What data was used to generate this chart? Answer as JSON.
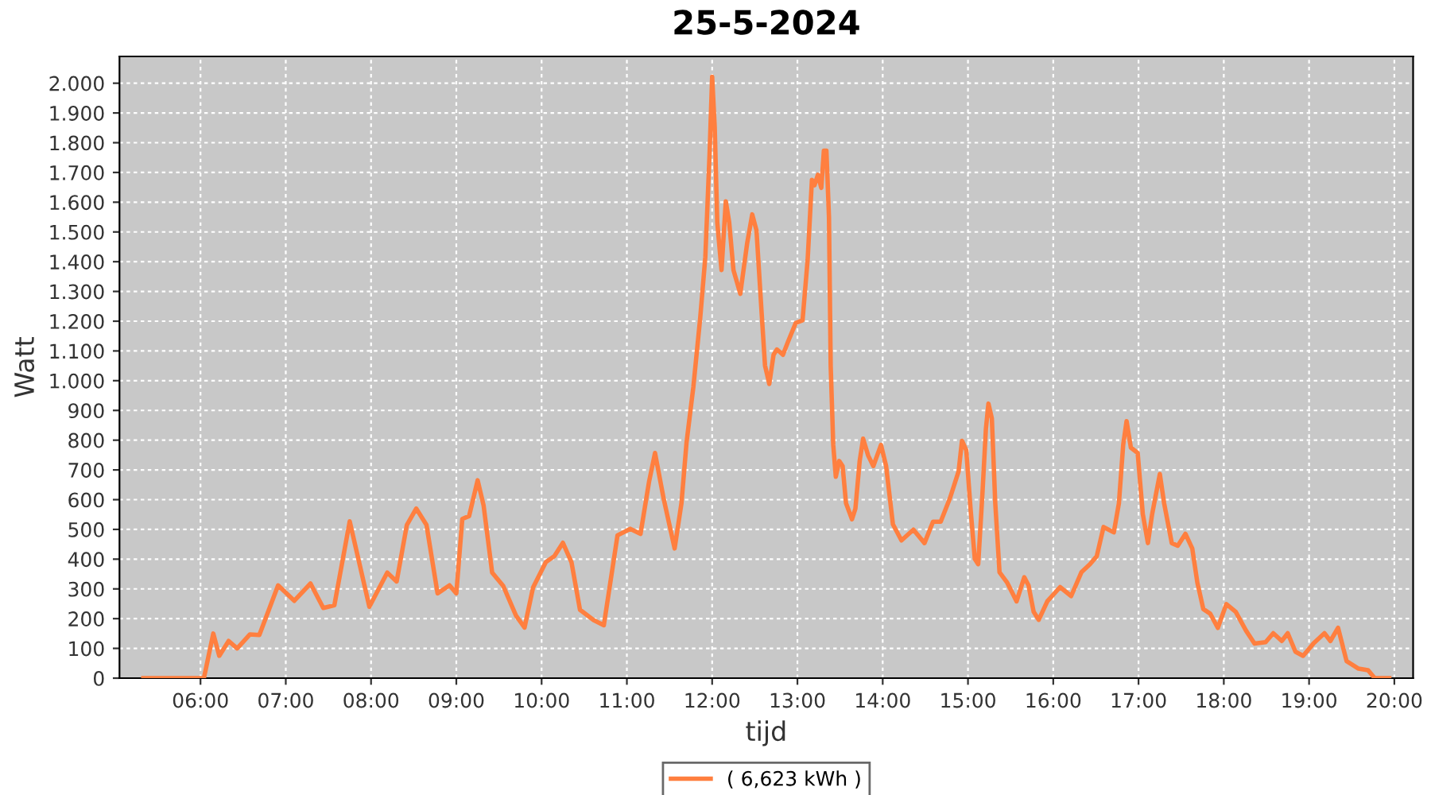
{
  "chart_data": {
    "type": "line",
    "title": "25-5-2024",
    "xlabel": "tijd",
    "ylabel": "Watt",
    "xlim": [
      5.05,
      20.22
    ],
    "xticks": [
      {
        "value": 6,
        "label": "06:00"
      },
      {
        "value": 7,
        "label": "07:00"
      },
      {
        "value": 8,
        "label": "08:00"
      },
      {
        "value": 9,
        "label": "09:00"
      },
      {
        "value": 10,
        "label": "10:00"
      },
      {
        "value": 11,
        "label": "11:00"
      },
      {
        "value": 12,
        "label": "12:00"
      },
      {
        "value": 13,
        "label": "13:00"
      },
      {
        "value": 14,
        "label": "14:00"
      },
      {
        "value": 15,
        "label": "15:00"
      },
      {
        "value": 16,
        "label": "16:00"
      },
      {
        "value": 17,
        "label": "17:00"
      },
      {
        "value": 18,
        "label": "18:00"
      },
      {
        "value": 19,
        "label": "19:00"
      },
      {
        "value": 20,
        "label": "20:00"
      }
    ],
    "ylim": [
      0,
      2090
    ],
    "yticks": [
      0,
      100,
      200,
      300,
      400,
      500,
      600,
      700,
      800,
      900,
      {
        "value": 1000,
        "label": "1.000"
      },
      {
        "value": 1100,
        "label": "1.100"
      },
      {
        "value": 1200,
        "label": "1.200"
      },
      {
        "value": 1300,
        "label": "1.300"
      },
      {
        "value": 1400,
        "label": "1.400"
      },
      {
        "value": 1500,
        "label": "1.500"
      },
      {
        "value": 1600,
        "label": "1.600"
      },
      {
        "value": 1700,
        "label": "1.700"
      },
      {
        "value": 1800,
        "label": "1.800"
      },
      {
        "value": 1900,
        "label": "1.900"
      },
      {
        "value": 2000,
        "label": "2.000"
      }
    ],
    "grid": true,
    "legend": "bottom",
    "marker": "none",
    "line_style": "solid",
    "series": [
      {
        "name": "( 6,623 kWh )",
        "color": "#ff7f3f",
        "x": [
          5.33,
          5.93,
          6.04,
          6.15,
          6.22,
          6.33,
          6.43,
          6.58,
          6.69,
          6.91,
          7.1,
          7.29,
          7.44,
          7.57,
          7.75,
          7.98,
          8.19,
          8.3,
          8.42,
          8.53,
          8.65,
          8.78,
          8.92,
          9.0,
          9.07,
          9.15,
          9.25,
          9.32,
          9.42,
          9.55,
          9.7,
          9.8,
          9.9,
          10.05,
          10.15,
          10.25,
          10.35,
          10.45,
          10.61,
          10.73,
          10.89,
          11.04,
          11.16,
          11.26,
          11.33,
          11.43,
          11.56,
          11.64,
          11.7,
          11.78,
          11.86,
          11.92,
          11.97,
          12.0,
          12.03,
          12.06,
          12.11,
          12.16,
          12.2,
          12.25,
          12.33,
          12.41,
          12.47,
          12.52,
          12.58,
          12.62,
          12.67,
          12.72,
          12.76,
          12.83,
          12.89,
          12.98,
          13.06,
          13.12,
          13.17,
          13.2,
          13.24,
          13.28,
          13.31,
          13.34,
          13.37,
          13.39,
          13.42,
          13.45,
          13.49,
          13.53,
          13.57,
          13.64,
          13.68,
          13.73,
          13.77,
          13.83,
          13.89,
          13.98,
          14.04,
          14.12,
          14.22,
          14.36,
          14.49,
          14.59,
          14.68,
          14.79,
          14.89,
          14.93,
          14.98,
          15.03,
          15.08,
          15.12,
          15.17,
          15.21,
          15.24,
          15.28,
          15.32,
          15.37,
          15.46,
          15.57,
          15.66,
          15.71,
          15.77,
          15.83,
          15.93,
          16.08,
          16.21,
          16.33,
          16.43,
          16.51,
          16.59,
          16.71,
          16.77,
          16.82,
          16.86,
          16.91,
          16.99,
          17.05,
          17.11,
          17.16,
          17.25,
          17.3,
          17.39,
          17.46,
          17.55,
          17.63,
          17.69,
          17.76,
          17.84,
          17.93,
          18.03,
          18.14,
          18.26,
          18.36,
          18.49,
          18.58,
          18.68,
          18.75,
          18.84,
          18.93,
          19.05,
          19.18,
          19.25,
          19.34,
          19.44,
          19.58,
          19.69,
          19.77,
          19.94
        ],
        "values": [
          0,
          0,
          0,
          150,
          75,
          125,
          100,
          147,
          145,
          312,
          260,
          318,
          236,
          245,
          527,
          240,
          355,
          325,
          515,
          570,
          515,
          285,
          312,
          285,
          535,
          545,
          665,
          580,
          355,
          310,
          210,
          170,
          305,
          390,
          410,
          455,
          390,
          230,
          195,
          178,
          480,
          502,
          485,
          660,
          757,
          605,
          436,
          588,
          793,
          980,
          1211,
          1416,
          1764,
          2022,
          1853,
          1532,
          1372,
          1603,
          1532,
          1372,
          1292,
          1461,
          1559,
          1505,
          1229,
          1051,
          989,
          1087,
          1105,
          1087,
          1131,
          1194,
          1203,
          1407,
          1675,
          1657,
          1692,
          1648,
          1773,
          1773,
          1550,
          1051,
          784,
          677,
          730,
          713,
          588,
          534,
          570,
          730,
          805,
          748,
          713,
          784,
          713,
          517,
          463,
          499,
          454,
          526,
          526,
          606,
          695,
          798,
          766,
          570,
          401,
          383,
          623,
          837,
          923,
          873,
          588,
          356,
          321,
          258,
          339,
          312,
          223,
          196,
          258,
          306,
          276,
          356,
          383,
          410,
          508,
          490,
          588,
          784,
          864,
          775,
          757,
          552,
          454,
          552,
          686,
          588,
          454,
          445,
          485,
          436,
          321,
          232,
          217,
          169,
          249,
          223,
          160,
          116,
          121,
          151,
          125,
          151,
          89,
          75,
          116,
          151,
          125,
          169,
          57,
          32,
          27,
          0,
          0
        ]
      }
    ]
  }
}
